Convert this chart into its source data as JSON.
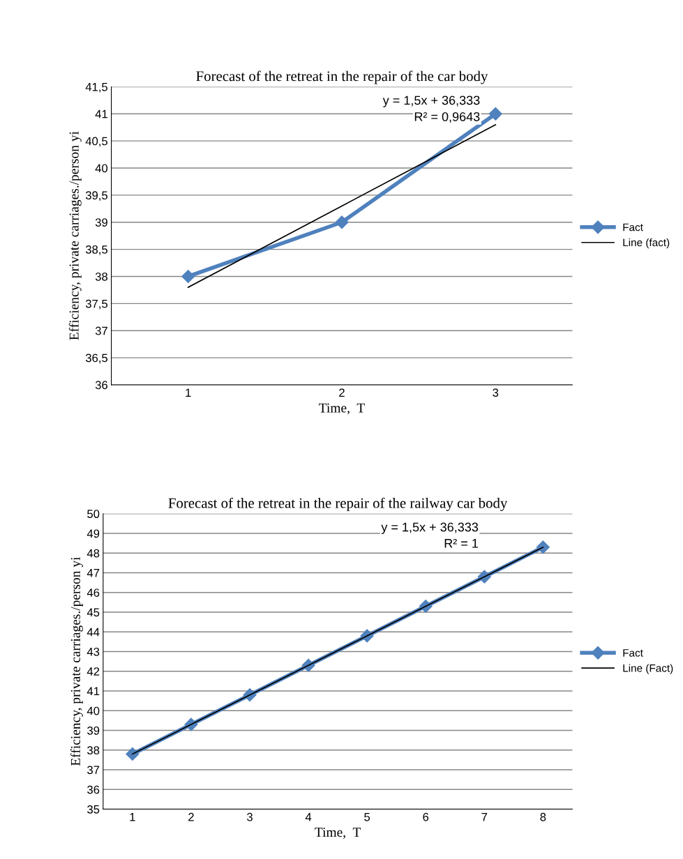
{
  "chart_data": [
    {
      "type": "line",
      "title": "Forecast of the retreat in the repair of the car body",
      "xlabel": "Time,  T",
      "ylabel": "Efficiency, private carriages./person yi",
      "categories": [
        "1",
        "2",
        "3"
      ],
      "series": [
        {
          "name": "Fact",
          "color": "#4f81bd",
          "values": [
            38,
            39,
            41
          ],
          "marker": "diamond"
        },
        {
          "name": "Line (fact)",
          "color": "#000000",
          "values": [
            37.8,
            39.3,
            40.8
          ],
          "marker": "none"
        }
      ],
      "ylim": [
        36,
        41.5
      ],
      "yticks": [
        36,
        {
          "value": 36.5,
          "label": "36,5"
        },
        37,
        {
          "value": 37.5,
          "label": "37,5"
        },
        38,
        {
          "value": 38.5,
          "label": "38,5"
        },
        39,
        {
          "value": 39.5,
          "label": "39,5"
        },
        40,
        {
          "value": 40.5,
          "label": "40,5"
        },
        41,
        {
          "value": 41.5,
          "label": "41,5"
        }
      ],
      "annotations": [
        "y = 1,5x + 36,333",
        "R² = 0,9643"
      ],
      "grid": "y",
      "legend": "right"
    },
    {
      "type": "line",
      "title": "Forecast of the retreat in the repair of the railway car body",
      "xlabel": "Time,  T",
      "ylabel": "Efficiency, private carriages./person yi",
      "categories": [
        "1",
        "2",
        "3",
        "4",
        "5",
        "6",
        "7",
        "8"
      ],
      "series": [
        {
          "name": "Fact",
          "color": "#4f81bd",
          "values": [
            37.8,
            39.3,
            40.8,
            42.3,
            43.8,
            45.3,
            46.8,
            48.3
          ],
          "marker": "diamond"
        },
        {
          "name": "Line (Fact)",
          "color": "#000000",
          "values": [
            37.8,
            39.3,
            40.8,
            42.3,
            43.8,
            45.3,
            46.8,
            48.3
          ],
          "marker": "none"
        }
      ],
      "ylim": [
        35,
        50
      ],
      "yticks": [
        35,
        36,
        37,
        38,
        39,
        40,
        41,
        42,
        43,
        44,
        45,
        46,
        47,
        48,
        49,
        50
      ],
      "annotations": [
        "y = 1,5x + 36,333",
        "R² = 1"
      ],
      "grid": "y",
      "legend": "right"
    }
  ]
}
